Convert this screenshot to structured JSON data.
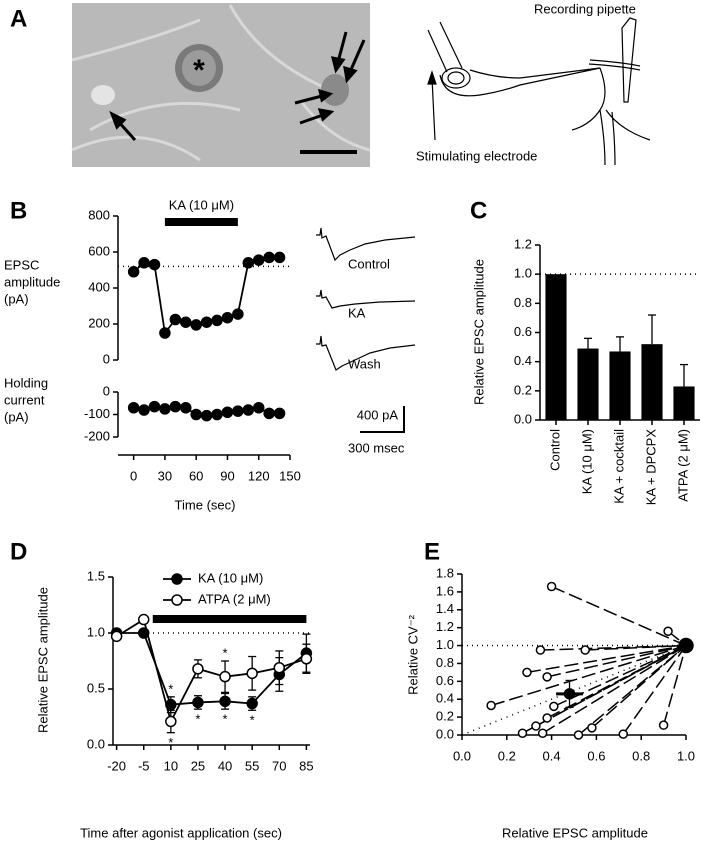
{
  "panel_labels": [
    "A",
    "B",
    "C",
    "D",
    "E"
  ],
  "panel_a": {
    "asterisk": "*",
    "recording_label": "Recording pipette",
    "stimulating_label": "Stimulating electrode"
  },
  "traces": {
    "labels": [
      "Control",
      "KA",
      "Wash"
    ],
    "scale_current": "400 pA",
    "scale_time": "300 msec"
  },
  "chart_data": [
    {
      "type": "line",
      "ylabel": [
        "EPSC",
        "amplitude",
        "(pA)"
      ],
      "x": [
        0,
        10,
        20,
        30,
        40,
        50,
        60,
        70,
        80,
        90,
        100,
        110,
        120,
        130,
        140
      ],
      "series": [
        {
          "color": "#000000",
          "marker_fill": "#000000",
          "values": [
            490,
            540,
            530,
            150,
            225,
            210,
            195,
            210,
            220,
            235,
            255,
            540,
            555,
            570,
            570
          ]
        }
      ],
      "xlim": [
        -15,
        150
      ],
      "ylim": [
        0,
        800
      ],
      "yticks": [
        0,
        200,
        400,
        600,
        800
      ],
      "ref_line": 520,
      "annotation": {
        "text": "KA (10 μM)",
        "start": 30,
        "end": 100
      }
    },
    {
      "type": "line",
      "ylabel": [
        "Holding",
        "current",
        "(pA)"
      ],
      "xlabel": "Time (sec)",
      "x": [
        0,
        10,
        20,
        30,
        40,
        50,
        60,
        70,
        80,
        90,
        100,
        110,
        120,
        130,
        140
      ],
      "series": [
        {
          "color": "#000000",
          "marker_fill": "#000000",
          "values": [
            -70,
            -80,
            -65,
            -75,
            -65,
            -70,
            -100,
            -105,
            -100,
            -90,
            -85,
            -80,
            -70,
            -95,
            -95
          ]
        }
      ],
      "xlim": [
        -15,
        150
      ],
      "ylim": [
        -280,
        0
      ],
      "yticks": [
        0,
        -100,
        -200
      ],
      "xticks": [
        0,
        30,
        60,
        90,
        120,
        150
      ]
    },
    {
      "type": "bar",
      "ylabel": "Relative EPSC amplitude",
      "categories": [
        "Control",
        "KA (10 μM)",
        "KA + cocktail",
        "KA + DPCPX",
        "ATPA (2 μM)"
      ],
      "values": [
        1.0,
        0.49,
        0.47,
        0.52,
        0.23
      ],
      "errors": [
        0,
        0.07,
        0.1,
        0.2,
        0.15
      ],
      "color": "#000000",
      "ylim": [
        0,
        1.2
      ],
      "yticks": [
        {
          "value": 0,
          "label": "0.0"
        },
        0.2,
        0.4,
        0.6,
        0.8,
        {
          "value": 1,
          "label": "1.0"
        },
        1.2
      ],
      "ref_line": 1.0
    },
    {
      "type": "line",
      "ylabel": "Relative EPSC amplitude",
      "xlabel": "Time after agonist application (sec)",
      "x": [
        -20,
        -5,
        10,
        25,
        40,
        55,
        70,
        85
      ],
      "series": [
        {
          "name": "KA (10 μM)",
          "color": "#000000",
          "marker_fill": "#000000",
          "values": [
            1.0,
            1.0,
            0.36,
            0.38,
            0.39,
            0.37,
            0.63,
            0.82
          ],
          "errors": [
            0.03,
            0.02,
            0.07,
            0.06,
            0.07,
            0.06,
            0.15,
            0.17
          ],
          "sig_above": [
            10
          ],
          "sig_below": [
            25,
            40,
            55
          ]
        },
        {
          "name": "ATPA (2 μM)",
          "color": "#000000",
          "marker_fill": "#ffffff",
          "values": [
            0.97,
            1.12,
            0.21,
            0.68,
            0.61,
            0.64,
            0.69,
            0.77
          ],
          "errors": [
            0.02,
            0.02,
            0.1,
            0.08,
            0.14,
            0.15,
            0.15,
            0.13
          ],
          "sig_above": [
            40
          ],
          "sig_below": [
            10
          ]
        }
      ],
      "significance_label": "*",
      "xlim": [
        -22,
        87
      ],
      "ylim": [
        0,
        1.5
      ],
      "xticks": [
        -20,
        -5,
        10,
        25,
        40,
        55,
        70,
        85
      ],
      "yticks": [
        {
          "value": 0,
          "label": "0.0"
        },
        0.5,
        {
          "value": 1,
          "label": "1.0"
        },
        1.5
      ],
      "ref_line": 1.0,
      "annotation": {
        "start": 0,
        "end": 85
      }
    },
    {
      "type": "scatter",
      "ylabel": "Relative CV⁻²",
      "xlabel": "Relative EPSC amplitude",
      "series": [
        {
          "color": "#000000",
          "marker_fill": "#ffffff",
          "x": [
            0.4,
            0.92,
            0.35,
            0.55,
            0.29,
            0.38,
            0.13,
            0.41,
            0.38,
            0.33,
            0.58,
            0.27,
            0.36,
            0.52,
            0.72,
            0.9
          ],
          "values": [
            1.66,
            1.16,
            0.95,
            0.95,
            0.7,
            0.65,
            0.33,
            0.32,
            0.19,
            0.1,
            0.08,
            0.02,
            0.02,
            0.0,
            0.01,
            0.11
          ]
        },
        {
          "color": "#000000",
          "marker_fill": "#000000",
          "x": [
            0.48
          ],
          "values": [
            0.46
          ],
          "x_errors": [
            0.06
          ],
          "errors": [
            0.15
          ]
        },
        {
          "color": "#000000",
          "marker_fill": "#000000",
          "x": [
            1.0
          ],
          "values": [
            1.0
          ]
        }
      ],
      "spokes": true,
      "identity_line": true,
      "ref_line": 1.0,
      "xlim": [
        0,
        1.0
      ],
      "ylim": [
        0,
        1.8
      ],
      "xticks": [
        {
          "value": 0,
          "label": "0.0"
        },
        0.2,
        0.4,
        0.6,
        0.8,
        {
          "value": 1,
          "label": "1.0"
        }
      ],
      "yticks": [
        {
          "value": 0,
          "label": "0.0"
        },
        0.2,
        0.4,
        0.6,
        0.8,
        {
          "value": 1,
          "label": "1.0"
        },
        1.2,
        1.4,
        1.6,
        1.8
      ]
    }
  ]
}
